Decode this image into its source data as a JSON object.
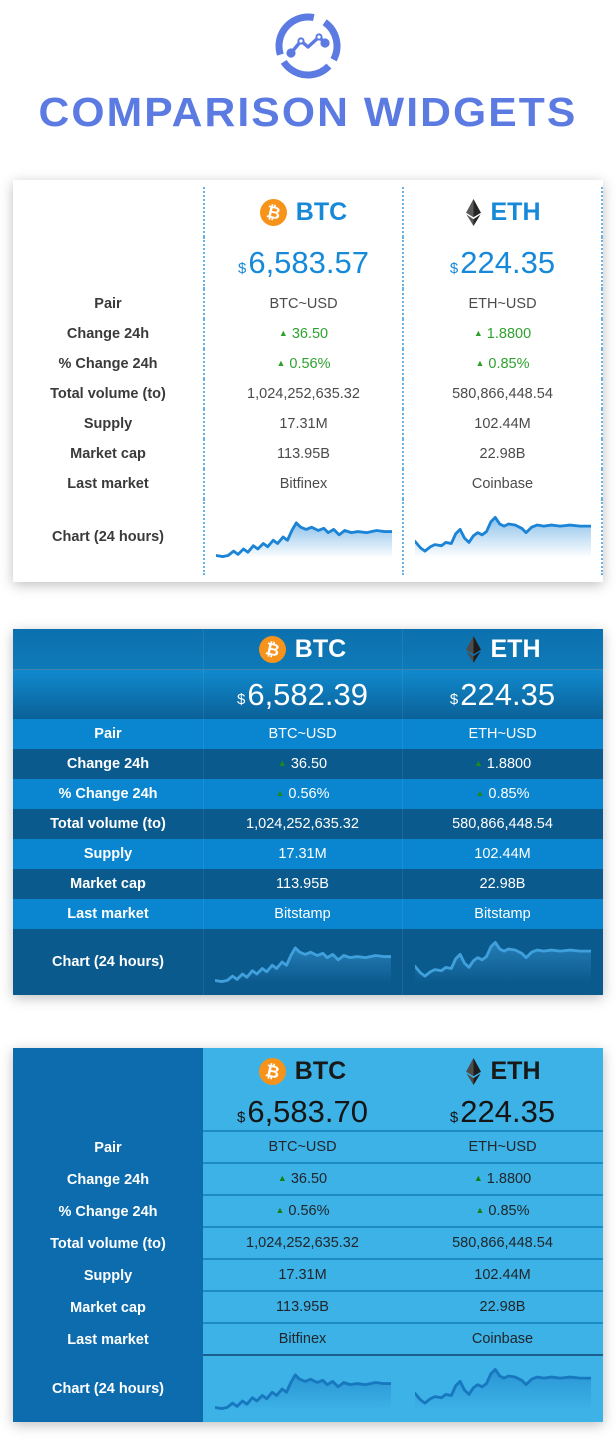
{
  "header": {
    "title": "COMPARISON WIDGETS"
  },
  "row_labels": {
    "pair": "Pair",
    "change": "Change 24h",
    "pct_change": "% Change 24h",
    "volume": "Total volume (to)",
    "supply": "Supply",
    "market_cap": "Market cap",
    "last_market": "Last market",
    "chart": "Chart (24 hours)"
  },
  "colors": {
    "title_blue": "#5b7ae2",
    "accent_blue": "#1689d9",
    "widget2_light_row": "#0a86d0",
    "widget2_dark_row": "#0b5a8e",
    "widget3_label_col": "#0d6cae",
    "widget3_content": "#3cb2e7",
    "positive_green": "#2fa12f",
    "bitcoin_orange": "#f7931a"
  },
  "widgets": [
    {
      "theme": "light",
      "btc": {
        "name": "BTC",
        "currency": "$",
        "price": "6,583.57",
        "pair": "BTC~USD",
        "change": "36.50",
        "pct_change": "0.56%",
        "volume": "1,024,252,635.32",
        "supply": "17.31M",
        "market_cap": "113.95B",
        "last_market": "Bitfinex"
      },
      "eth": {
        "name": "ETH",
        "currency": "$",
        "price": "224.35",
        "pair": "ETH~USD",
        "change": "1.8800",
        "pct_change": "0.85%",
        "volume": "580,866,448.54",
        "supply": "102.44M",
        "market_cap": "22.98B",
        "last_market": "Coinbase"
      }
    },
    {
      "theme": "blue",
      "btc": {
        "name": "BTC",
        "currency": "$",
        "price": "6,582.39",
        "pair": "BTC~USD",
        "change": "36.50",
        "pct_change": "0.56%",
        "volume": "1,024,252,635.32",
        "supply": "17.31M",
        "market_cap": "113.95B",
        "last_market": "Bitstamp"
      },
      "eth": {
        "name": "ETH",
        "currency": "$",
        "price": "224.35",
        "pair": "ETH~USD",
        "change": "1.8800",
        "pct_change": "0.85%",
        "volume": "580,866,448.54",
        "supply": "102.44M",
        "market_cap": "22.98B",
        "last_market": "Bitstamp"
      }
    },
    {
      "theme": "duo",
      "btc": {
        "name": "BTC",
        "currency": "$",
        "price": "6,583.70",
        "pair": "BTC~USD",
        "change": "36.50",
        "pct_change": "0.56%",
        "volume": "1,024,252,635.32",
        "supply": "17.31M",
        "market_cap": "113.95B",
        "last_market": "Bitfinex"
      },
      "eth": {
        "name": "ETH",
        "currency": "$",
        "price": "224.35",
        "pair": "ETH~USD",
        "change": "1.8800",
        "pct_change": "0.85%",
        "volume": "580,866,448.54",
        "supply": "102.44M",
        "market_cap": "22.98B",
        "last_market": "Coinbase"
      }
    }
  ],
  "sparklines": {
    "btc": "0,40 6,41 11,40 16,36 20,39 25,34 29,37 34,31 38,34 43,29 47,32 52,26 56,29 61,23 65,26 69,17 73,10 77,14 82,16 87,14 93,17 98,15 102,19 107,16 112,21 117,17 123,19 129,18 137,19 146,17 153,18 160,18",
    "eth": "0,27 5,33 9,36 14,32 18,30 24,31 28,28 33,29 37,20 41,16 45,24 49,28 53,22 57,19 61,21 65,18 69,9 73,5 77,11 81,13 85,11 91,12 97,15 101,19 106,14 111,12 117,13 124,12 132,13 141,12 150,13 160,13"
  }
}
